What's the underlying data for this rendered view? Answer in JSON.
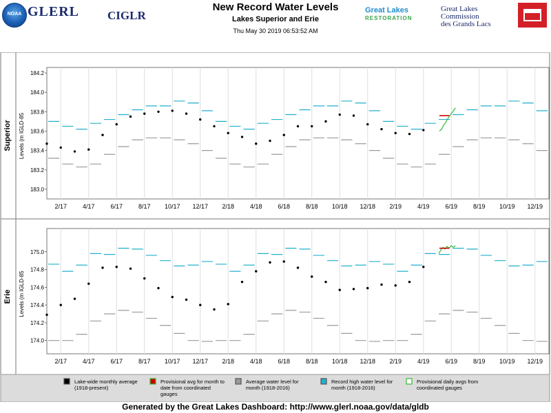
{
  "header": {
    "title": "New Record Water Levels",
    "subtitle": "Lakes Superior and Erie",
    "timestamp": "Thu May 30 2019 06:53:52 AM"
  },
  "logos": {
    "noaa": "NOAA",
    "glerl": "GLERL",
    "ciglr": "CIGLR",
    "glr_line1": "Great Lakes",
    "glr_line2": "RESTORATION",
    "glc_line1": "Great Lakes",
    "glc_line2": "Commission",
    "glc_line3": "des Grands Lacs"
  },
  "footer": "Generated by the Great Lakes Dashboard: http://www.glerl.noaa.gov/data/gldb",
  "legend": [
    {
      "key": "monthly",
      "label_line1": "Lake-wide monthly average",
      "label_line2": "(1918-present)",
      "label_line3": "",
      "color": "#000000"
    },
    {
      "key": "provisional",
      "label_line1": "Provisional avg for month to",
      "label_line2": "date from coordinated",
      "label_line3": "gauges",
      "color": "#cc0000"
    },
    {
      "key": "average",
      "label_line1": "Average water level for",
      "label_line2": "month (1918-2016)",
      "label_line3": "",
      "color": "#999999"
    },
    {
      "key": "record",
      "label_line1": "Record high water level for",
      "label_line2": "month (1918-2016)",
      "label_line3": "",
      "color": "#20b0cc"
    },
    {
      "key": "daily",
      "label_line1": "Provisional daily avgs from",
      "label_line2": "coordinated gauges",
      "label_line3": "",
      "color": "#33bb33"
    }
  ],
  "chart_data": [
    {
      "type": "scatter",
      "panel_label": "Superior",
      "ylabel": "Levels (m IGLD-85",
      "ylim": [
        182.9,
        184.2
      ],
      "yticks": [
        183.0,
        183.2,
        183.4,
        183.6,
        183.8,
        184.0,
        184.2
      ],
      "xlim_months": [
        0,
        36
      ],
      "month_origin": "2017-01",
      "xtick_labels": [
        "2/17",
        "4/17",
        "6/17",
        "8/17",
        "10/17",
        "12/17",
        "2/18",
        "4/18",
        "6/18",
        "8/18",
        "10/18",
        "12/18",
        "2/19",
        "4/19",
        "6/19",
        "8/19",
        "10/19",
        "12/19"
      ],
      "grid": "vertical",
      "monthly_avg": [
        183.47,
        183.43,
        183.39,
        183.41,
        183.56,
        183.67,
        183.75,
        183.78,
        183.8,
        183.81,
        183.78,
        183.72,
        183.65,
        183.58,
        183.54,
        183.47,
        183.5,
        183.56,
        183.65,
        183.65,
        183.7,
        183.77,
        183.76,
        183.67,
        183.62,
        183.58,
        183.57,
        183.61
      ],
      "avg_1918_2016": [
        183.32,
        183.26,
        183.23,
        183.26,
        183.36,
        183.44,
        183.51,
        183.53,
        183.53,
        183.51,
        183.47,
        183.4
      ],
      "record_high_1918_2016": [
        183.7,
        183.65,
        183.62,
        183.68,
        183.72,
        183.77,
        183.82,
        183.86,
        183.86,
        183.91,
        183.89,
        183.81
      ],
      "provisional_month": {
        "month": 28,
        "value": 183.76
      },
      "provisional_daily": [
        [
          28.15,
          183.6
        ],
        [
          28.3,
          183.62
        ],
        [
          28.45,
          183.66
        ],
        [
          28.6,
          183.69
        ],
        [
          28.75,
          183.73
        ],
        [
          28.9,
          183.76
        ],
        [
          29.05,
          183.79
        ],
        [
          29.2,
          183.82
        ],
        [
          29.3,
          183.84
        ]
      ]
    },
    {
      "type": "scatter",
      "panel_label": "Erie",
      "ylabel": "Levels (m IGLD-85",
      "ylim": [
        173.85,
        175.2
      ],
      "yticks": [
        174.0,
        174.2,
        174.4,
        174.6,
        174.8,
        175.0
      ],
      "xlim_months": [
        0,
        36
      ],
      "month_origin": "2017-01",
      "xtick_labels": [
        "2/17",
        "4/17",
        "6/17",
        "8/17",
        "10/17",
        "12/17",
        "2/18",
        "4/18",
        "6/18",
        "8/18",
        "10/18",
        "12/18",
        "2/19",
        "4/19",
        "6/19",
        "8/19",
        "10/19",
        "12/19"
      ],
      "grid": "vertical",
      "monthly_avg": [
        174.29,
        174.4,
        174.47,
        174.64,
        174.82,
        174.83,
        174.81,
        174.7,
        174.59,
        174.49,
        174.46,
        174.4,
        174.35,
        174.41,
        174.66,
        174.78,
        174.88,
        174.89,
        174.82,
        174.72,
        174.66,
        174.57,
        174.58,
        174.59,
        174.63,
        174.62,
        174.66,
        174.83
      ],
      "avg_1918_2016": [
        174.0,
        174.0,
        174.07,
        174.22,
        174.3,
        174.34,
        174.32,
        174.25,
        174.17,
        174.08,
        174.0,
        173.99
      ],
      "record_high_1918_2016": [
        174.86,
        174.78,
        174.85,
        174.98,
        174.97,
        175.04,
        175.03,
        174.96,
        174.9,
        174.84,
        174.85,
        174.89
      ],
      "provisional_month": {
        "month": 28,
        "value": 175.04
      },
      "provisional_daily": [
        [
          28.1,
          174.98
        ],
        [
          28.25,
          175.02
        ],
        [
          28.4,
          175.05
        ],
        [
          28.55,
          175.03
        ],
        [
          28.7,
          175.06
        ],
        [
          28.85,
          175.04
        ],
        [
          29.0,
          175.07
        ],
        [
          29.15,
          175.05
        ],
        [
          29.3,
          175.07
        ]
      ]
    }
  ]
}
